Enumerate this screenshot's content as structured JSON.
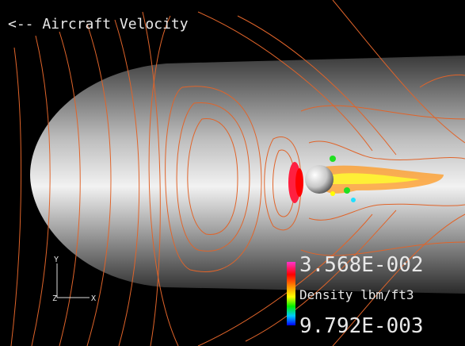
{
  "header": {
    "title": "<-- Aircraft Velocity"
  },
  "legend": {
    "max_label": "3.568E-002",
    "quantity": "Density lbm/ft3",
    "min_label": "9.792E-003"
  },
  "axes": {
    "y": "Y",
    "z": "Z",
    "x": "X"
  }
}
